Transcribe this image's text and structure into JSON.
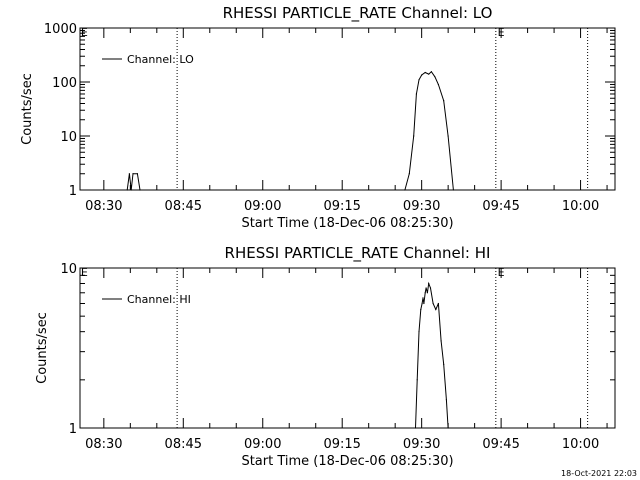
{
  "chart_data": [
    {
      "type": "line",
      "title": "RHESSI PARTICLE_RATE Channel: LO",
      "xlabel": "Start Time (18-Dec-06 08:25:30)",
      "ylabel": "Counts/sec",
      "yscale": "log",
      "ylim": [
        1,
        1000
      ],
      "xlim": [
        "08:25:30",
        "10:06:30"
      ],
      "x_ticks": [
        "08:30",
        "08:45",
        "09:00",
        "09:15",
        "09:30",
        "09:45",
        "10:00"
      ],
      "y_ticks": [
        "1",
        "10",
        "100",
        "1000"
      ],
      "legend": "top-left",
      "series": [
        {
          "name": "Channel: LO",
          "x": [
            "08:34:25",
            "08:34:50",
            "08:35:10",
            "08:35:30",
            "08:36:20",
            "08:36:50",
            "09:26:50",
            "09:27:40",
            "09:28:30",
            "09:29:00",
            "09:29:30",
            "09:30:00",
            "09:30:40",
            "09:31:20",
            "09:31:50",
            "09:32:30",
            "09:33:10",
            "09:34:10",
            "09:35:00",
            "09:36:00"
          ],
          "values": [
            1,
            2,
            1,
            2,
            2,
            1,
            1,
            2,
            10,
            60,
            110,
            135,
            150,
            140,
            155,
            125,
            90,
            45,
            10,
            1
          ]
        }
      ],
      "annotations": [
        {
          "label": "E",
          "x": "08:25:40"
        },
        {
          "label": "E",
          "x": "09:44:20"
        }
      ],
      "vlines": [
        "08:43:50",
        "09:44:00",
        "10:01:20"
      ]
    },
    {
      "type": "line",
      "title": "RHESSI PARTICLE_RATE Channel: HI",
      "xlabel": "Start Time (18-Dec-06 08:25:30)",
      "ylabel": "Counts/sec",
      "yscale": "log",
      "ylim": [
        1,
        10
      ],
      "xlim": [
        "08:25:30",
        "10:06:30"
      ],
      "x_ticks": [
        "08:30",
        "08:45",
        "09:00",
        "09:15",
        "09:30",
        "09:45",
        "10:00"
      ],
      "y_ticks": [
        "1",
        "10"
      ],
      "legend": "top-left",
      "series": [
        {
          "name": "Channel: HI",
          "x": [
            "09:28:50",
            "09:29:10",
            "09:29:30",
            "09:29:50",
            "09:30:05",
            "09:30:15",
            "09:30:25",
            "09:30:40",
            "09:30:50",
            "09:31:05",
            "09:31:20",
            "09:31:40",
            "09:32:10",
            "09:32:40",
            "09:33:10",
            "09:33:40",
            "09:34:10",
            "09:34:40",
            "09:35:00"
          ],
          "values": [
            1,
            2,
            4,
            5.5,
            6,
            6.5,
            6,
            7,
            7.5,
            7,
            8,
            7.5,
            6,
            5.5,
            6,
            3.5,
            2.5,
            1.5,
            1
          ]
        }
      ],
      "annotations": [
        {
          "label": "E",
          "x": "08:25:40"
        },
        {
          "label": "E",
          "x": "09:44:20"
        }
      ],
      "vlines": [
        "08:43:50",
        "09:44:00",
        "10:01:20"
      ]
    }
  ],
  "timestamp": "18-Oct-2021 22:03"
}
